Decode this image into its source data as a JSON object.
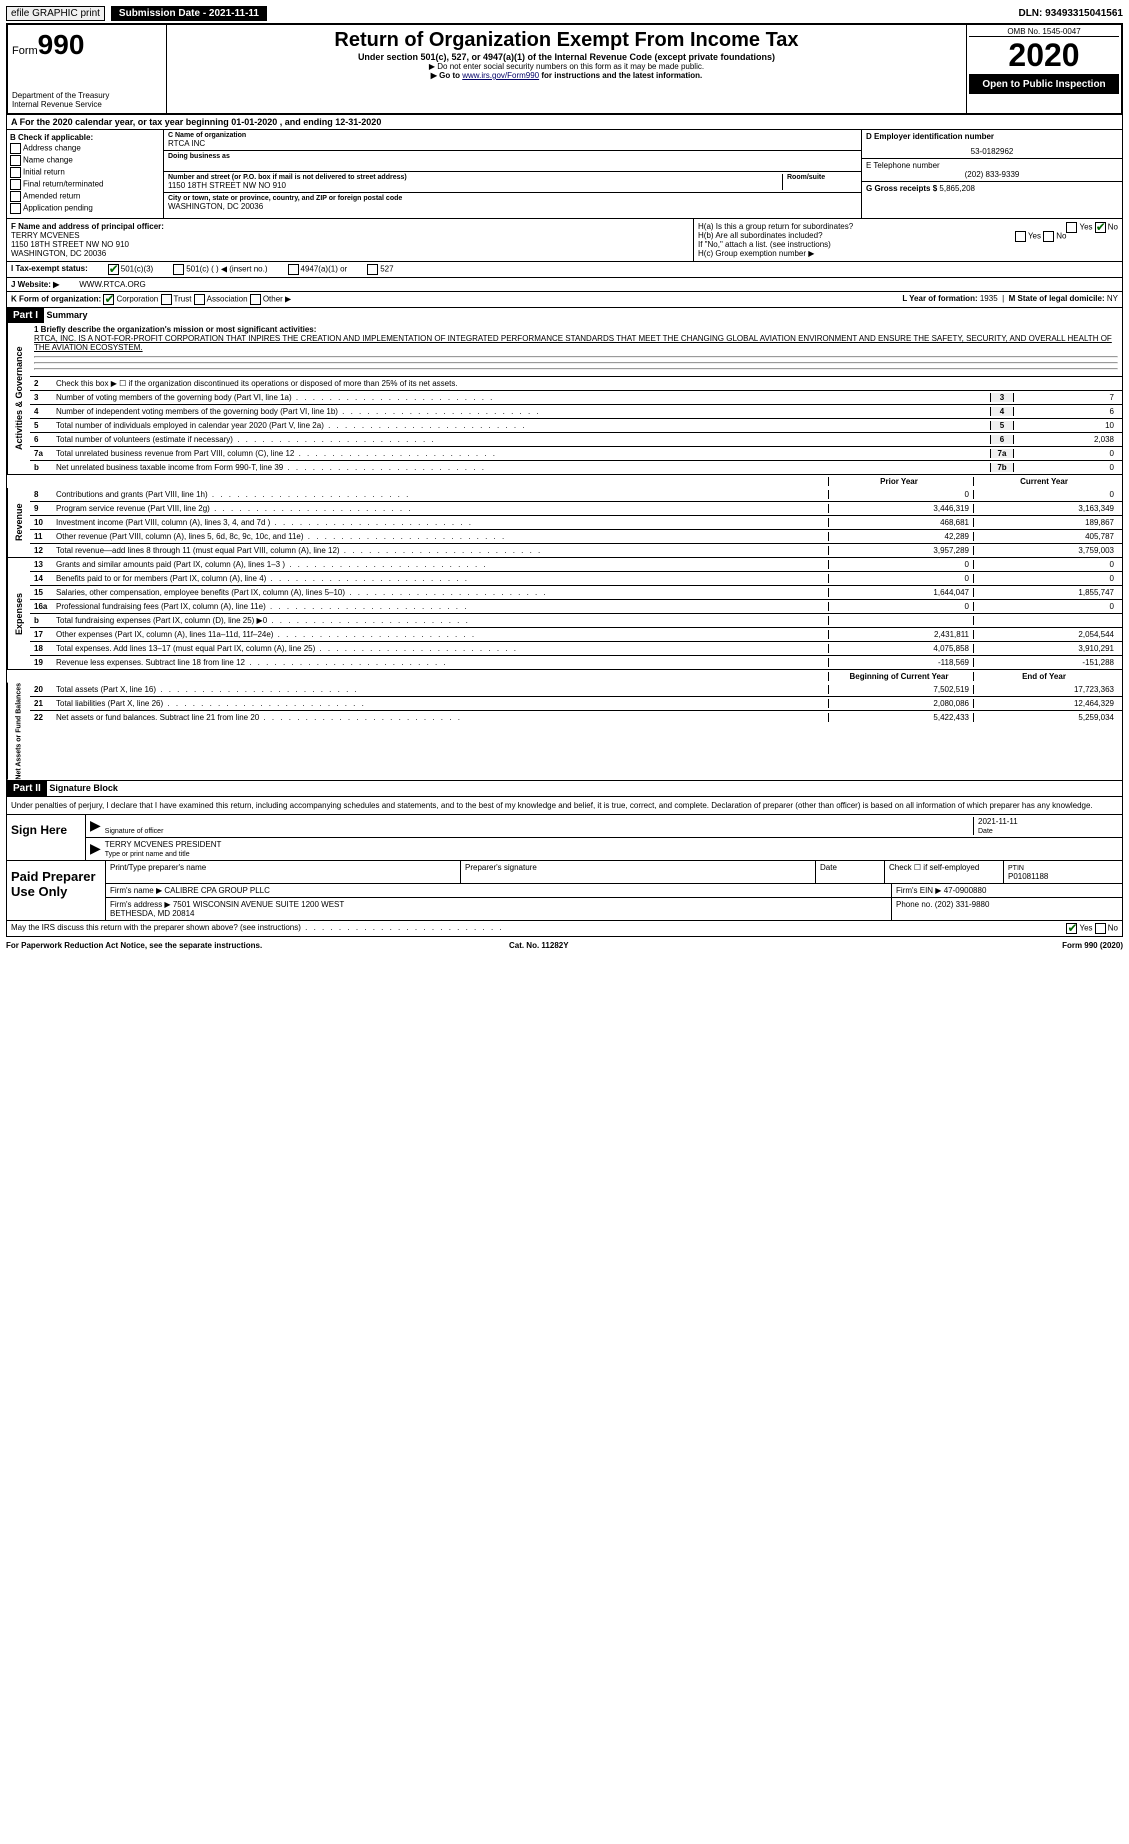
{
  "top": {
    "efile": "efile GRAPHIC print",
    "submission_label": "Submission Date - 2021-11-11",
    "dln": "DLN: 93493315041561"
  },
  "header": {
    "form_word": "Form",
    "form_num": "990",
    "dept": "Department of the Treasury\nInternal Revenue Service",
    "title": "Return of Organization Exempt From Income Tax",
    "subtitle": "Under section 501(c), 527, or 4947(a)(1) of the Internal Revenue Code (except private foundations)",
    "note1": "▶ Do not enter social security numbers on this form as it may be made public.",
    "note2_pre": "▶ Go to ",
    "note2_link": "www.irs.gov/Form990",
    "note2_post": " for instructions and the latest information.",
    "omb": "OMB No. 1545-0047",
    "year": "2020",
    "open": "Open to Public Inspection"
  },
  "rowA": "A For the 2020 calendar year, or tax year beginning 01-01-2020    , and ending 12-31-2020",
  "B": {
    "label": "B Check if applicable:",
    "items": [
      "Address change",
      "Name change",
      "Initial return",
      "Final return/terminated",
      "Amended return",
      "Application pending"
    ]
  },
  "C": {
    "name_label": "C Name of organization",
    "name": "RTCA INC",
    "dba_label": "Doing business as",
    "addr_label": "Number and street (or P.O. box if mail is not delivered to street address)",
    "room_label": "Room/suite",
    "addr": "1150 18TH STREET NW NO 910",
    "city_label": "City or town, state or province, country, and ZIP or foreign postal code",
    "city": "WASHINGTON, DC  20036"
  },
  "D": {
    "label": "D Employer identification number",
    "val": "53-0182962"
  },
  "E": {
    "label": "E Telephone number",
    "val": "(202) 833-9339"
  },
  "G": {
    "label": "G Gross receipts $",
    "val": "5,865,208"
  },
  "F": {
    "label": "F  Name and address of principal officer:",
    "name": "TERRY MCVENES",
    "addr1": "1150 18TH STREET NW NO 910",
    "addr2": "WASHINGTON, DC  20036"
  },
  "H": {
    "a": "H(a)  Is this a group return for subordinates?",
    "b": "H(b)  Are all subordinates included?",
    "b_note": "If \"No,\" attach a list. (see instructions)",
    "c": "H(c)  Group exemption number ▶",
    "yes": "Yes",
    "no": "No"
  },
  "I": {
    "label": "I  Tax-exempt status:",
    "c3": "501(c)(3)",
    "c": "501(c) (   ) ◀ (insert no.)",
    "a47": "4947(a)(1) or",
    "s527": "527"
  },
  "J": {
    "label": "J  Website: ▶",
    "val": "WWW.RTCA.ORG"
  },
  "K": {
    "label": "K Form of organization:",
    "corp": "Corporation",
    "trust": "Trust",
    "assoc": "Association",
    "other": "Other ▶"
  },
  "L": {
    "label": "L Year of formation:",
    "val": "1935"
  },
  "M": {
    "label": "M State of legal domicile:",
    "val": "NY"
  },
  "partI": {
    "label": "Part I",
    "title": "Summary"
  },
  "mission_label": "1  Briefly describe the organization's mission or most significant activities:",
  "mission": "RTCA, INC. IS A NOT-FOR-PROFIT CORPORATION THAT INPIRES THE CREATION AND IMPLEMENTATION OF INTEGRATED PERFORMANCE STANDARDS THAT MEET THE CHANGING GLOBAL AVIATION ENVIRONMENT AND ENSURE THE SAFETY, SECURITY, AND OVERALL HEALTH OF THE AVIATION ECOSYSTEM.",
  "gov": {
    "tab": "Activities & Governance",
    "l2": "Check this box ▶ ☐ if the organization discontinued its operations or disposed of more than 25% of its net assets.",
    "l3": "Number of voting members of the governing body (Part VI, line 1a)",
    "v3": "7",
    "l4": "Number of independent voting members of the governing body (Part VI, line 1b)",
    "v4": "6",
    "l5": "Total number of individuals employed in calendar year 2020 (Part V, line 2a)",
    "v5": "10",
    "l6": "Total number of volunteers (estimate if necessary)",
    "v6": "2,038",
    "l7a": "Total unrelated business revenue from Part VIII, column (C), line 12",
    "v7a": "0",
    "l7b": "Net unrelated business taxable income from Form 990-T, line 39",
    "v7b": "0"
  },
  "cols": {
    "prior": "Prior Year",
    "current": "Current Year",
    "boy": "Beginning of Current Year",
    "eoy": "End of Year"
  },
  "rev": {
    "tab": "Revenue",
    "rows": [
      {
        "n": "8",
        "t": "Contributions and grants (Part VIII, line 1h)",
        "p": "0",
        "c": "0"
      },
      {
        "n": "9",
        "t": "Program service revenue (Part VIII, line 2g)",
        "p": "3,446,319",
        "c": "3,163,349"
      },
      {
        "n": "10",
        "t": "Investment income (Part VIII, column (A), lines 3, 4, and 7d )",
        "p": "468,681",
        "c": "189,867"
      },
      {
        "n": "11",
        "t": "Other revenue (Part VIII, column (A), lines 5, 6d, 8c, 9c, 10c, and 11e)",
        "p": "42,289",
        "c": "405,787"
      },
      {
        "n": "12",
        "t": "Total revenue—add lines 8 through 11 (must equal Part VIII, column (A), line 12)",
        "p": "3,957,289",
        "c": "3,759,003"
      }
    ]
  },
  "exp": {
    "tab": "Expenses",
    "rows": [
      {
        "n": "13",
        "t": "Grants and similar amounts paid (Part IX, column (A), lines 1–3 )",
        "p": "0",
        "c": "0"
      },
      {
        "n": "14",
        "t": "Benefits paid to or for members (Part IX, column (A), line 4)",
        "p": "0",
        "c": "0"
      },
      {
        "n": "15",
        "t": "Salaries, other compensation, employee benefits (Part IX, column (A), lines 5–10)",
        "p": "1,644,047",
        "c": "1,855,747"
      },
      {
        "n": "16a",
        "t": "Professional fundraising fees (Part IX, column (A), line 11e)",
        "p": "0",
        "c": "0"
      },
      {
        "n": "b",
        "t": "Total fundraising expenses (Part IX, column (D), line 25) ▶0",
        "p": "",
        "c": ""
      },
      {
        "n": "17",
        "t": "Other expenses (Part IX, column (A), lines 11a–11d, 11f–24e)",
        "p": "2,431,811",
        "c": "2,054,544"
      },
      {
        "n": "18",
        "t": "Total expenses. Add lines 13–17 (must equal Part IX, column (A), line 25)",
        "p": "4,075,858",
        "c": "3,910,291"
      },
      {
        "n": "19",
        "t": "Revenue less expenses. Subtract line 18 from line 12",
        "p": "-118,569",
        "c": "-151,288"
      }
    ]
  },
  "net": {
    "tab": "Net Assets or Fund Balances",
    "rows": [
      {
        "n": "20",
        "t": "Total assets (Part X, line 16)",
        "p": "7,502,519",
        "c": "17,723,363"
      },
      {
        "n": "21",
        "t": "Total liabilities (Part X, line 26)",
        "p": "2,080,086",
        "c": "12,464,329"
      },
      {
        "n": "22",
        "t": "Net assets or fund balances. Subtract line 21 from line 20",
        "p": "5,422,433",
        "c": "5,259,034"
      }
    ]
  },
  "partII": {
    "label": "Part II",
    "title": "Signature Block"
  },
  "sig": {
    "decl": "Under penalties of perjury, I declare that I have examined this return, including accompanying schedules and statements, and to the best of my knowledge and belief, it is true, correct, and complete. Declaration of preparer (other than officer) is based on all information of which preparer has any knowledge.",
    "sign_here": "Sign Here",
    "sig_officer": "Signature of officer",
    "date": "Date",
    "date_val": "2021-11-11",
    "name": "TERRY MCVENES PRESIDENT",
    "name_lbl": "Type or print name and title",
    "paid": "Paid Preparer Use Only",
    "pname": "Print/Type preparer's name",
    "psig": "Preparer's signature",
    "pdate": "Date",
    "pcheck": "Check ☐ if self-employed",
    "ptin_l": "PTIN",
    "ptin": "P01081188",
    "firm_l": "Firm's name   ▶",
    "firm": "CALIBRE CPA GROUP PLLC",
    "ein_l": "Firm's EIN ▶",
    "ein": "47-0900880",
    "faddr_l": "Firm's address ▶",
    "faddr": "7501 WISCONSIN AVENUE SUITE 1200 WEST\nBETHESDA, MD  20814",
    "phone_l": "Phone no.",
    "phone": "(202) 331-9880",
    "discuss": "May the IRS discuss this return with the preparer shown above? (see instructions)"
  },
  "footer": {
    "l": "For Paperwork Reduction Act Notice, see the separate instructions.",
    "m": "Cat. No. 11282Y",
    "r": "Form 990 (2020)"
  }
}
